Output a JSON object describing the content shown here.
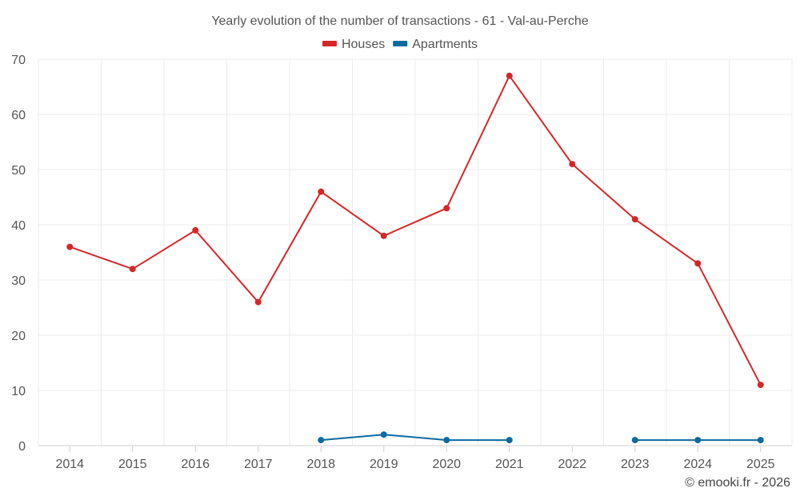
{
  "chart_data": {
    "type": "line",
    "title": "Yearly evolution of the number of transactions - 61 - Val-au-Perche",
    "categories": [
      "2014",
      "2015",
      "2016",
      "2017",
      "2018",
      "2019",
      "2020",
      "2021",
      "2022",
      "2023",
      "2024",
      "2025"
    ],
    "ylim": [
      0,
      70
    ],
    "yticks": [
      0,
      10,
      20,
      30,
      40,
      50,
      60,
      70
    ],
    "grid": true,
    "legend_position": "top-center",
    "series": [
      {
        "name": "Houses",
        "color": "#d62728",
        "values": [
          36,
          32,
          39,
          26,
          46,
          38,
          43,
          67,
          51,
          41,
          33,
          11
        ]
      },
      {
        "name": "Apartments",
        "color": "#0b6aa2",
        "values": [
          null,
          null,
          null,
          null,
          1,
          2,
          1,
          1,
          null,
          1,
          1,
          1
        ]
      }
    ]
  },
  "credit": "© emooki.fr - 2026"
}
